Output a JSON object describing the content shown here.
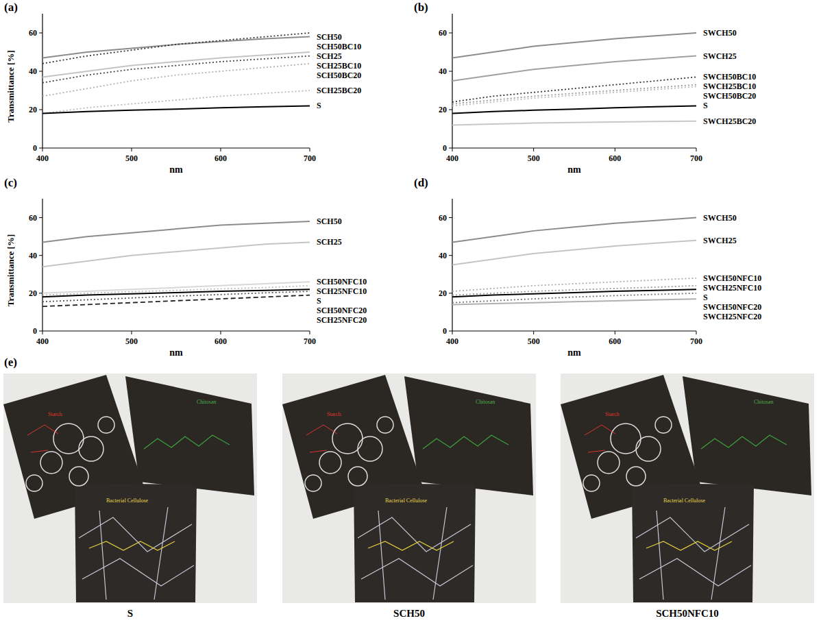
{
  "chart_data": [
    {
      "type": "line",
      "title": "(a)",
      "x_label": "nm",
      "y_label": "Transmittance [%]",
      "x": [
        400,
        450,
        500,
        550,
        600,
        650,
        700
      ],
      "xlim": [
        400,
        700
      ],
      "xticks": [
        400,
        500,
        600,
        700
      ],
      "ylim": [
        0,
        70
      ],
      "yticks": [
        0,
        20,
        40,
        60
      ],
      "series": [
        {
          "name": "SCH50",
          "color": "#8c8c8c",
          "line_style": "solid",
          "values": [
            47,
            50,
            52,
            54,
            55.5,
            57,
            58
          ]
        },
        {
          "name": "SCH50BC10",
          "color": "#333333",
          "line_style": "dotted",
          "values": [
            44,
            48,
            51,
            54,
            56,
            58,
            60
          ]
        },
        {
          "name": "SCH25",
          "color": "#c4c4c4",
          "line_style": "solid",
          "values": [
            37,
            40,
            43,
            45,
            47,
            48.5,
            50
          ]
        },
        {
          "name": "SCH25BC10",
          "color": "#444444",
          "line_style": "dotted",
          "values": [
            34,
            38,
            41,
            43,
            45,
            46.5,
            48
          ]
        },
        {
          "name": "SCH50BC20",
          "color": "#b0b0b0",
          "line_style": "dotted",
          "values": [
            27,
            31,
            35,
            38,
            40,
            42,
            44
          ]
        },
        {
          "name": "SCH25BC20",
          "color": "#b8b8b8",
          "line_style": "dotted",
          "values": [
            18,
            21,
            23,
            25,
            27,
            28.5,
            30
          ]
        },
        {
          "name": "S",
          "color": "#000000",
          "line_style": "solid",
          "values": [
            18,
            19,
            19.7,
            20.3,
            21,
            21.5,
            22
          ]
        }
      ]
    },
    {
      "type": "line",
      "title": "(b)",
      "x_label": "nm",
      "x": [
        400,
        450,
        500,
        550,
        600,
        650,
        700
      ],
      "xlim": [
        400,
        700
      ],
      "xticks": [
        400,
        500,
        600,
        700
      ],
      "ylim": [
        0,
        70
      ],
      "yticks": [
        0,
        20,
        40,
        60
      ],
      "series": [
        {
          "name": "SWCH50",
          "color": "#8c8c8c",
          "line_style": "solid",
          "values": [
            47,
            50,
            53,
            55,
            57,
            58.5,
            60
          ]
        },
        {
          "name": "SWCH25",
          "color": "#a0a0a0",
          "line_style": "solid",
          "values": [
            35,
            38,
            41,
            43,
            45,
            46.5,
            48
          ]
        },
        {
          "name": "SWCH50BC10",
          "color": "#333333",
          "line_style": "dotted",
          "values": [
            24,
            27,
            29,
            31,
            33,
            35,
            37
          ]
        },
        {
          "name": "SWCH25BC10",
          "color": "#999999",
          "line_style": "dotted",
          "values": [
            23,
            25,
            27,
            28.5,
            30,
            31.5,
            33
          ]
        },
        {
          "name": "SWCH50BC20",
          "color": "#bbbbbb",
          "line_style": "dotted",
          "values": [
            22,
            24,
            26,
            27.5,
            29,
            30.5,
            32
          ]
        },
        {
          "name": "S",
          "color": "#000000",
          "line_style": "solid",
          "values": [
            18,
            19,
            19.7,
            20.3,
            21,
            21.5,
            22
          ]
        },
        {
          "name": "SWCH25BC20",
          "color": "#c8c8c8",
          "line_style": "solid",
          "values": [
            12,
            12.5,
            13,
            13.3,
            13.6,
            13.8,
            14
          ]
        }
      ]
    },
    {
      "type": "line",
      "title": "(c)",
      "x_label": "nm",
      "y_label": "Transmittance [%]",
      "x": [
        400,
        450,
        500,
        550,
        600,
        650,
        700
      ],
      "xlim": [
        400,
        700
      ],
      "xticks": [
        400,
        500,
        600,
        700
      ],
      "ylim": [
        0,
        70
      ],
      "yticks": [
        0,
        20,
        40,
        60
      ],
      "series": [
        {
          "name": "SCH50",
          "color": "#8c8c8c",
          "line_style": "solid",
          "values": [
            47,
            50,
            52,
            54,
            56,
            57,
            58
          ]
        },
        {
          "name": "SCH25",
          "color": "#c4c4c4",
          "line_style": "solid",
          "values": [
            34,
            37,
            40,
            42,
            44,
            46,
            47
          ]
        },
        {
          "name": "SCH50NFC10",
          "color": "#d8d8d8",
          "line_style": "solid",
          "values": [
            20,
            21,
            22,
            23,
            24,
            25,
            26
          ]
        },
        {
          "name": "SCH25NFC10",
          "color": "#bbbbbb",
          "line_style": "dotted",
          "values": [
            19,
            20,
            20.8,
            21.5,
            22.3,
            23,
            24
          ]
        },
        {
          "name": "S",
          "color": "#000000",
          "line_style": "solid",
          "values": [
            18,
            19,
            19.7,
            20.3,
            21,
            21.5,
            22
          ]
        },
        {
          "name": "SCH50NFC20",
          "color": "#555555",
          "line_style": "dotted",
          "values": [
            15.5,
            16.5,
            17.5,
            18.5,
            19.3,
            20.2,
            21
          ]
        },
        {
          "name": "SCH25NFC20",
          "color": "#222222",
          "line_style": "dashed",
          "values": [
            13,
            14,
            15,
            16,
            17,
            18,
            19
          ]
        }
      ]
    },
    {
      "type": "line",
      "title": "(d)",
      "x_label": "nm",
      "x": [
        400,
        450,
        500,
        550,
        600,
        650,
        700
      ],
      "xlim": [
        400,
        700
      ],
      "xticks": [
        400,
        500,
        600,
        700
      ],
      "ylim": [
        0,
        70
      ],
      "yticks": [
        0,
        20,
        40,
        60
      ],
      "series": [
        {
          "name": "SWCH50",
          "color": "#8c8c8c",
          "line_style": "solid",
          "values": [
            47,
            50,
            53,
            55,
            57,
            58.5,
            60
          ]
        },
        {
          "name": "SWCH25",
          "color": "#c4c4c4",
          "line_style": "solid",
          "values": [
            35,
            38,
            41,
            43,
            45,
            46.5,
            48
          ]
        },
        {
          "name": "SWCH50NFC10",
          "color": "#aaaaaa",
          "line_style": "dotted",
          "values": [
            21,
            22.5,
            24,
            25,
            26,
            27,
            28
          ]
        },
        {
          "name": "SWCH25NFC10",
          "color": "#999999",
          "line_style": "dotted",
          "values": [
            19,
            20,
            21,
            21.8,
            22.5,
            23.2,
            24
          ]
        },
        {
          "name": "S",
          "color": "#000000",
          "line_style": "solid",
          "values": [
            18,
            19,
            19.7,
            20.3,
            21,
            21.5,
            22
          ]
        },
        {
          "name": "SWCH50NFC20",
          "color": "#777777",
          "line_style": "dotted",
          "values": [
            15,
            16,
            17,
            18,
            18.7,
            19.4,
            20
          ]
        },
        {
          "name": "SWCH25NFC20",
          "color": "#b0b0b0",
          "line_style": "solid",
          "values": [
            14,
            14.5,
            15,
            15.5,
            16,
            16.5,
            17
          ]
        }
      ]
    }
  ],
  "panel_e": {
    "label": "(e)",
    "photos": [
      {
        "caption": "S",
        "texts": [
          "Starch",
          "Chitosan",
          "Bacterial Cellulose"
        ]
      },
      {
        "caption": "SCH50",
        "texts": [
          "Starch",
          "Chitosan",
          "Bacterial Cellulose"
        ]
      },
      {
        "caption": "SCH50NFC10",
        "texts": [
          "Starch",
          "Chitosan",
          "Bacterial Cellulose"
        ]
      }
    ]
  }
}
